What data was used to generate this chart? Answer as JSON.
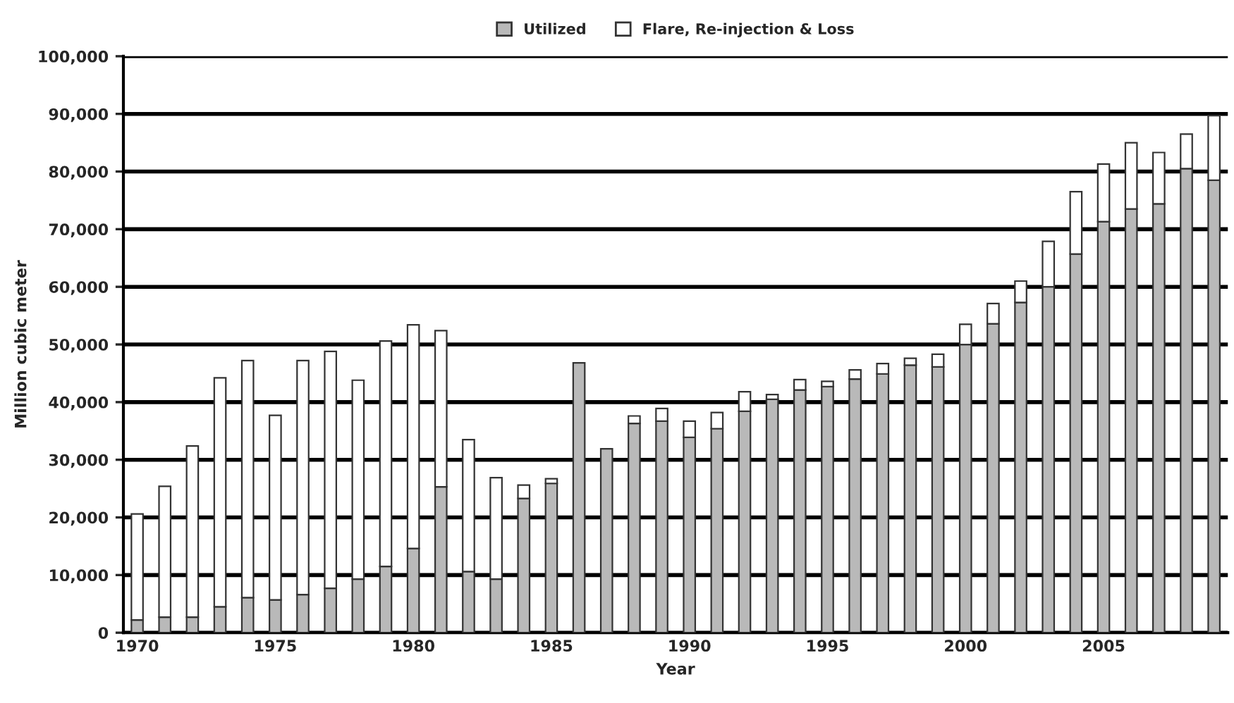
{
  "chart_data": {
    "type": "bar",
    "stacked": true,
    "xlabel": "Year",
    "ylabel": "Million cubic meter",
    "categories": [
      "1970",
      null,
      null,
      null,
      null,
      "1975",
      null,
      null,
      null,
      null,
      "1980",
      null,
      null,
      null,
      null,
      "1985",
      null,
      null,
      null,
      null,
      "1990",
      null,
      null,
      null,
      null,
      "1995",
      null,
      null,
      null,
      null,
      "2000",
      null,
      null,
      null,
      null,
      "2005",
      null,
      null,
      null,
      null
    ],
    "series": [
      {
        "name": "Utilized",
        "color": "#b9b9b9",
        "values": [
          2200,
          2700,
          2700,
          4500,
          6100,
          5700,
          6600,
          7700,
          9300,
          11500,
          14600,
          25300,
          10600,
          9300,
          23300,
          25900,
          46800,
          31900,
          36300,
          36700,
          33900,
          35400,
          38400,
          40500,
          42100,
          42700,
          44000,
          44900,
          46400,
          46100,
          50000,
          53600,
          57300,
          60000,
          65700,
          71300,
          73500,
          74400,
          80500,
          78500
        ]
      },
      {
        "name": "Flare, Re-injection & Loss",
        "color": "#ffffff",
        "values": [
          18400,
          22700,
          29700,
          39700,
          41100,
          32000,
          40600,
          41100,
          34500,
          39100,
          38800,
          27100,
          22900,
          17600,
          2300,
          800,
          null,
          null,
          1300,
          2200,
          2800,
          2800,
          3400,
          800,
          1800,
          900,
          1600,
          1800,
          1200,
          2200,
          3500,
          3500,
          3700,
          7900,
          10800,
          10000,
          11500,
          8900,
          6000,
          11200
        ]
      }
    ],
    "ylim": [
      0,
      100000
    ],
    "yticks": [
      {
        "value": 0,
        "label": "0"
      },
      {
        "value": 10000,
        "label": "10,000"
      },
      {
        "value": 20000,
        "label": "20,000"
      },
      {
        "value": 30000,
        "label": "30,000"
      },
      {
        "value": 40000,
        "label": "40,000"
      },
      {
        "value": 50000,
        "label": "50,000"
      },
      {
        "value": 60000,
        "label": "60,000"
      },
      {
        "value": 70000,
        "label": "70,000"
      },
      {
        "value": 80000,
        "label": "80,000"
      },
      {
        "value": 90000,
        "label": "90,000"
      },
      {
        "value": 100000,
        "label": "100,000"
      }
    ],
    "grid": "y",
    "legend": "top"
  }
}
